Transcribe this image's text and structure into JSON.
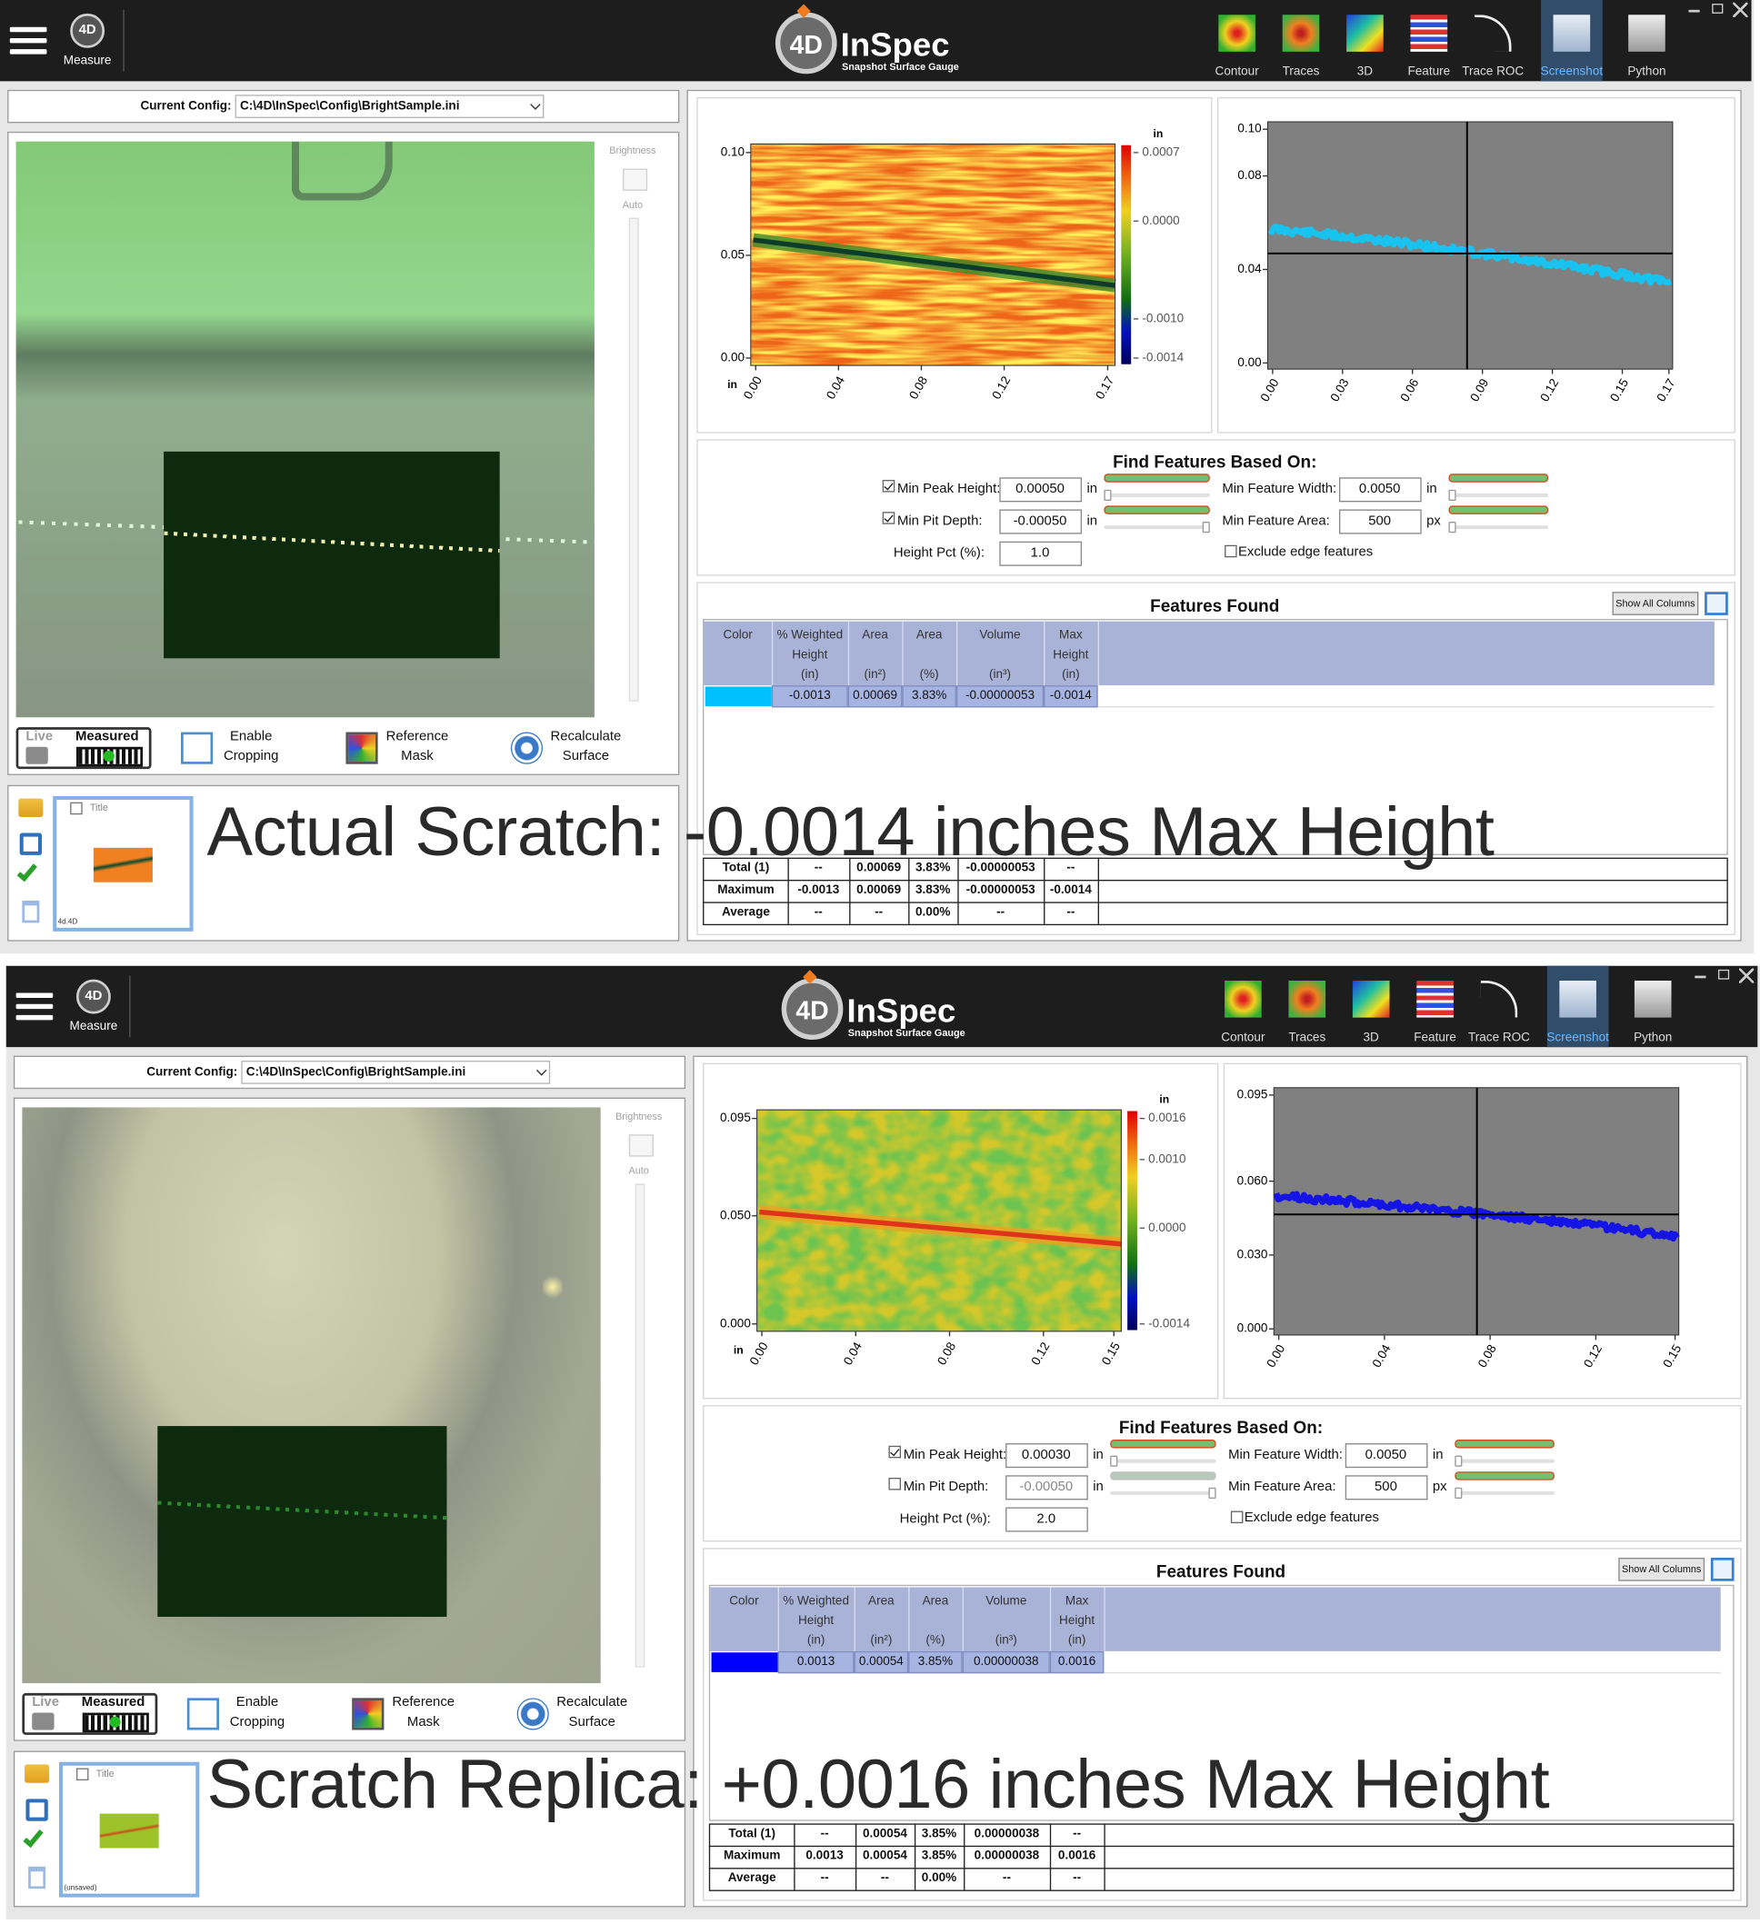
{
  "panels": [
    {
      "header": {
        "menu": "Measure",
        "brand_mark": "4D",
        "brand": "InSpec",
        "brand_sub": "Snapshot Surface Gauge",
        "tools": [
          "Contour",
          "Traces",
          "3D",
          "Feature",
          "Trace ROC",
          "Screenshot",
          "Python"
        ]
      },
      "config": {
        "label": "Current Config:",
        "path": "C:\\4D\\InSpec\\Config\\BrightSample.ini"
      },
      "camera": {
        "brightness": "Brightness",
        "auto": "Auto",
        "live": "Live",
        "measured": "Measured",
        "buttons": [
          [
            "Enable",
            "Cropping"
          ],
          [
            "Reference",
            "Mask"
          ],
          [
            "Recalculate",
            "Surface"
          ]
        ]
      },
      "thumbnail": {
        "title": "Title",
        "file": "4d.4D"
      },
      "heatmap": {
        "y_ticks": [
          "0.10",
          "0.05",
          "0.00"
        ],
        "x_ticks": [
          "0.00",
          "0.04",
          "0.08",
          "0.12",
          "0.17"
        ],
        "x_unit": "in",
        "colorbar_unit": "in",
        "colorbar_ticks": [
          "0.0007",
          "0.0000",
          "-0.0010",
          "-0.0014"
        ]
      },
      "profile": {
        "y_ticks": [
          "0.10",
          "0.08",
          "0.04",
          "0.00"
        ],
        "x_ticks": [
          "0.00",
          "0.03",
          "0.06",
          "0.09",
          "0.12",
          "0.15",
          "0.17"
        ],
        "color": "#19c3f0"
      },
      "find": {
        "title": "Find Features Based On:",
        "left": [
          {
            "label": "Min Peak Height:",
            "value": "0.00050",
            "unit": "in",
            "checked": true,
            "enabled": true
          },
          {
            "label": "Min Pit Depth:",
            "value": "-0.00050",
            "unit": "in",
            "checked": true,
            "enabled": true
          },
          {
            "label": "Height Pct (%):",
            "value": "1.0"
          }
        ],
        "right": [
          {
            "label": "Min Feature Width:",
            "value": "0.0050",
            "unit": "in",
            "enabled": true
          },
          {
            "label": "Min Feature Area:",
            "value": "500",
            "unit": "px",
            "enabled": true
          }
        ],
        "exclude": {
          "label": "Exclude edge features",
          "checked": false
        }
      },
      "features": {
        "title": "Features Found",
        "show_all": "Show All Columns",
        "headers": [
          [
            "Color"
          ],
          [
            "% Weighted",
            "Height",
            "(in)"
          ],
          [
            "Area",
            "(in²)"
          ],
          [
            "Area",
            "(%)"
          ],
          [
            "Volume",
            "(in³)"
          ],
          [
            "Max",
            "Height",
            "(in)"
          ]
        ],
        "row_color": "#00bfff",
        "row": [
          "-0.0013",
          "0.00069",
          "3.83%",
          "-0.00000053",
          "-0.0014"
        ],
        "summary": [
          [
            "Total (1)",
            "--",
            "0.00069",
            "3.83%",
            "-0.00000053",
            "--"
          ],
          [
            "Maximum",
            "-0.0013",
            "0.00069",
            "3.83%",
            "-0.00000053",
            "-0.0014"
          ],
          [
            "Average",
            "--",
            "--",
            "0.00%",
            "--",
            "--"
          ]
        ]
      },
      "caption": "Actual Scratch: -0.0014 inches Max Height"
    },
    {
      "header": {
        "menu": "Measure",
        "brand_mark": "4D",
        "brand": "InSpec",
        "brand_sub": "Snapshot Surface Gauge",
        "tools": [
          "Contour",
          "Traces",
          "3D",
          "Feature",
          "Trace ROC",
          "Screenshot",
          "Python"
        ]
      },
      "config": {
        "label": "Current Config:",
        "path": "C:\\4D\\InSpec\\Config\\BrightSample.ini"
      },
      "camera": {
        "brightness": "Brightness",
        "auto": "Auto",
        "live": "Live",
        "measured": "Measured",
        "buttons": [
          [
            "Enable",
            "Cropping"
          ],
          [
            "Reference",
            "Mask"
          ],
          [
            "Recalculate",
            "Surface"
          ]
        ]
      },
      "thumbnail": {
        "title": "Title",
        "file": "(unsaved)"
      },
      "heatmap": {
        "y_ticks": [
          "0.095",
          "0.050",
          "0.000"
        ],
        "x_ticks": [
          "0.00",
          "0.04",
          "0.08",
          "0.12",
          "0.15"
        ],
        "x_unit": "in",
        "colorbar_unit": "in",
        "colorbar_ticks": [
          "0.0016",
          "0.0010",
          "0.0000",
          "-0.0014"
        ]
      },
      "profile": {
        "y_ticks": [
          "0.095",
          "0.060",
          "0.030",
          "0.000"
        ],
        "x_ticks": [
          "0.00",
          "0.04",
          "0.08",
          "0.12",
          "0.15"
        ],
        "color": "#1414e6"
      },
      "find": {
        "title": "Find Features Based On:",
        "left": [
          {
            "label": "Min Peak Height:",
            "value": "0.00030",
            "unit": "in",
            "checked": true,
            "enabled": true
          },
          {
            "label": "Min Pit Depth:",
            "value": "-0.00050",
            "unit": "in",
            "checked": false,
            "enabled": false
          },
          {
            "label": "Height Pct (%):",
            "value": "2.0"
          }
        ],
        "right": [
          {
            "label": "Min Feature Width:",
            "value": "0.0050",
            "unit": "in",
            "enabled": true
          },
          {
            "label": "Min Feature Area:",
            "value": "500",
            "unit": "px",
            "enabled": true
          }
        ],
        "exclude": {
          "label": "Exclude edge features",
          "checked": false
        }
      },
      "features": {
        "title": "Features Found",
        "show_all": "Show All Columns",
        "headers": [
          [
            "Color"
          ],
          [
            "% Weighted",
            "Height",
            "(in)"
          ],
          [
            "Area",
            "(in²)"
          ],
          [
            "Area",
            "(%)"
          ],
          [
            "Volume",
            "(in³)"
          ],
          [
            "Max",
            "Height",
            "(in)"
          ]
        ],
        "row_color": "#0000ff",
        "row": [
          "0.0013",
          "0.00054",
          "3.85%",
          "0.00000038",
          "0.0016"
        ],
        "summary": [
          [
            "Total (1)",
            "--",
            "0.00054",
            "3.85%",
            "0.00000038",
            "--"
          ],
          [
            "Maximum",
            "0.0013",
            "0.00054",
            "3.85%",
            "0.00000038",
            "0.0016"
          ],
          [
            "Average",
            "--",
            "--",
            "0.00%",
            "--",
            "--"
          ]
        ]
      },
      "caption": "Scratch Replica: +0.0016 inches Max Height"
    }
  ]
}
